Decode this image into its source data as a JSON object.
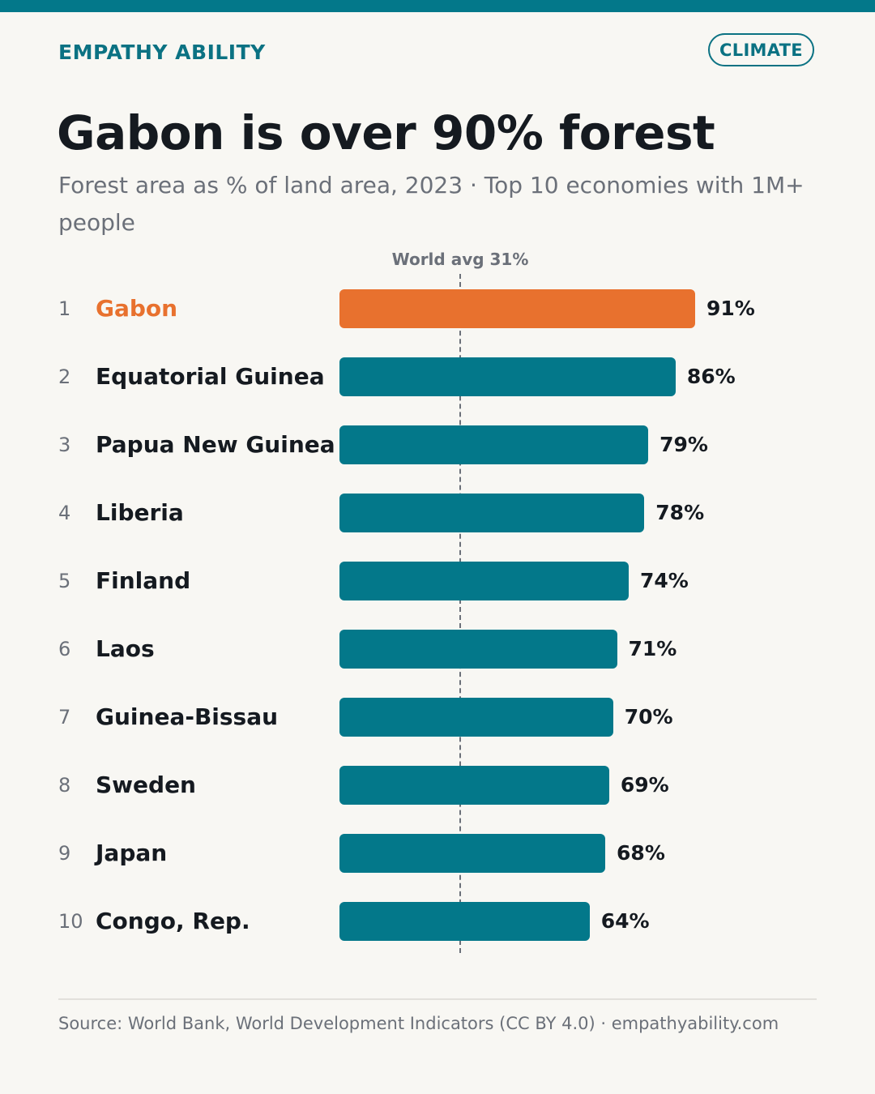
{
  "header": {
    "brand": "EMPATHY ABILITY",
    "tag": "CLIMATE"
  },
  "chart_data": {
    "type": "bar",
    "orientation": "horizontal",
    "title": "Gabon is over 90% forest",
    "subtitle": "Forest area as % of land area, 2023 · Top 10 economies with 1M+ people",
    "categories": [
      "Gabon",
      "Equatorial Guinea",
      "Papua New Guinea",
      "Liberia",
      "Finland",
      "Laos",
      "Guinea-Bissau",
      "Sweden",
      "Japan",
      "Congo, Rep."
    ],
    "ranks": [
      "1",
      "2",
      "3",
      "4",
      "5",
      "6",
      "7",
      "8",
      "9",
      "10"
    ],
    "values": [
      91,
      86,
      79,
      78,
      74,
      71,
      70,
      69,
      68,
      64
    ],
    "value_labels": [
      "91%",
      "86%",
      "79%",
      "78%",
      "74%",
      "71%",
      "70%",
      "69%",
      "68%",
      "64%"
    ],
    "highlight_index": 0,
    "reference_line": {
      "value": 31,
      "label": "World avg 31%"
    },
    "xlim": [
      0,
      100
    ],
    "grid": false,
    "legend": "none",
    "colors": {
      "bar": "#03788a",
      "highlight": "#e8712e",
      "reference": "#6b7079"
    }
  },
  "footer": {
    "source": "Source: World Bank, World Development Indicators (CC BY 4.0) · empathyability.com"
  }
}
